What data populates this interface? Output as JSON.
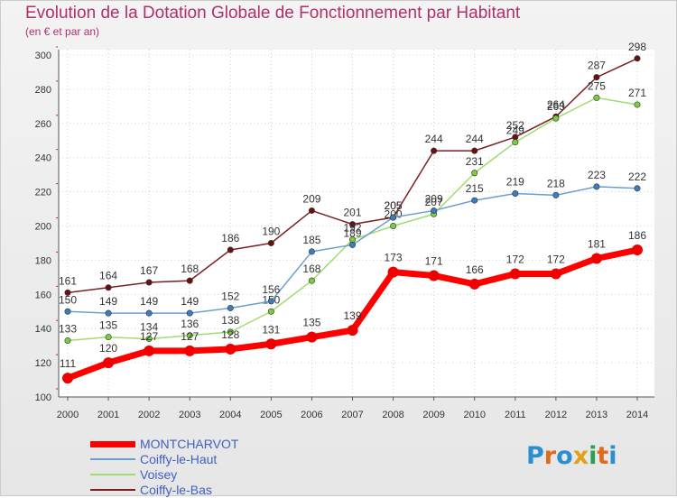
{
  "title": "Evolution de la Dotation Globale de Fonctionnement par Habitant",
  "subtitle": "(en € et par an)",
  "logo": {
    "text": "Proxiti",
    "letters": [
      {
        "ch": "P",
        "color": "#2a8fd0"
      },
      {
        "ch": "r",
        "color": "#e06a1a"
      },
      {
        "ch": "o",
        "color": "#2a8fd0"
      },
      {
        "ch": "x",
        "color": "#e0a01a"
      },
      {
        "ch": "i",
        "color": "#2aa050"
      },
      {
        "ch": "t",
        "color": "#e06a1a"
      },
      {
        "ch": "i",
        "color": "#2a8fd0"
      }
    ]
  },
  "chart_data": {
    "type": "line",
    "title": "Evolution de la Dotation Globale de Fonctionnement par Habitant",
    "subtitle": "(en € et par an)",
    "x": [
      "2000",
      "2001",
      "2002",
      "2003",
      "2004",
      "2005",
      "2006",
      "2007",
      "2008",
      "2009",
      "2010",
      "2011",
      "2012",
      "2013",
      "2014"
    ],
    "ylim": [
      100,
      300
    ],
    "yticks": [
      100,
      120,
      140,
      160,
      180,
      200,
      220,
      240,
      260,
      280,
      300
    ],
    "grid": true,
    "legend_position": "bottom-left",
    "series": [
      {
        "name": "Coiffy-le-Bas",
        "color": "#7a2020",
        "marker": "#6a1010",
        "values": [
          161,
          164,
          167,
          168,
          186,
          190,
          209,
          201,
          205,
          244,
          244,
          252,
          264,
          287,
          298
        ]
      },
      {
        "name": "Voisey",
        "color": "#a0dc70",
        "marker": "#7ccc40",
        "values": [
          133,
          135,
          134,
          136,
          138,
          150,
          168,
          192,
          200,
          207,
          231,
          249,
          263,
          275,
          271
        ]
      },
      {
        "name": "Coiffy-le-Haut",
        "color": "#6aa0d0",
        "marker": "#3b7ec0",
        "values": [
          150,
          149,
          149,
          149,
          152,
          156,
          185,
          189,
          205,
          209,
          215,
          219,
          218,
          223,
          222
        ]
      },
      {
        "name": "MONTCHARVOT",
        "color": "#ff0000",
        "marker": "#ee0000",
        "values": [
          111,
          120,
          127,
          127,
          128,
          131,
          135,
          139,
          173,
          171,
          166,
          172,
          172,
          181,
          186
        ]
      }
    ],
    "labels": {
      "Coiffy-le-Bas": [
        "161",
        "164",
        "167",
        "168",
        "186",
        "190",
        "209",
        "201",
        "205",
        "244",
        "244",
        "252",
        "264",
        "287",
        "298"
      ],
      "Voisey": [
        "133",
        "135",
        "134",
        "136",
        "138",
        "150",
        "168",
        "192",
        "200",
        "207",
        "231",
        "249",
        "263",
        "275",
        "271"
      ],
      "Coiffy-le-Haut": [
        "150",
        "149",
        "149",
        "149",
        "152",
        "156",
        "185",
        "189",
        "205",
        "209",
        "215",
        "219",
        "218",
        "223",
        "222"
      ],
      "MONTCHARVOT": [
        "111",
        "120",
        "127",
        "127",
        "128",
        "131",
        "135",
        "139",
        "173",
        "171",
        "166",
        "172",
        "172",
        "181",
        "186"
      ]
    }
  },
  "legend": [
    {
      "name": "MONTCHARVOT",
      "color": "#ff0000",
      "thickness": 7
    },
    {
      "name": "Coiffy-le-Haut",
      "color": "#6aa0d0",
      "thickness": 2
    },
    {
      "name": "Voisey",
      "color": "#a0dc70",
      "thickness": 2
    },
    {
      "name": "Coiffy-le-Bas",
      "color": "#7a2020",
      "thickness": 2
    }
  ]
}
